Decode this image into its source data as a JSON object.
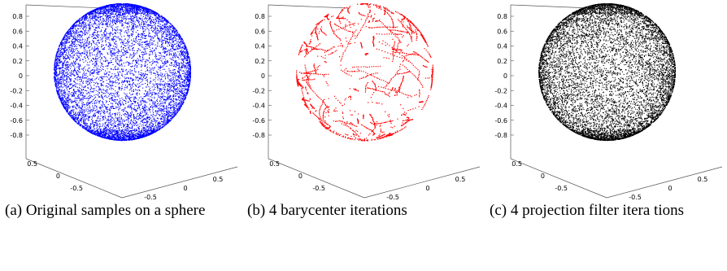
{
  "chart_data": [
    {
      "type": "scatter",
      "projection": "3d",
      "color": "#0000ff",
      "point_count": 9000,
      "distribution": "uniform samples on unit sphere",
      "yticks": [
        "0.8",
        "0.6",
        "0.4",
        "0.2",
        "0",
        "-0.2",
        "-0.4",
        "-0.6",
        "-0.8"
      ],
      "xticks": [
        "0.5",
        "0",
        "-0.5"
      ],
      "zticks": [
        "-0.5",
        "0",
        "0.5"
      ],
      "caption": {
        "label": "(a)",
        "text": "Original samples on a sphere"
      }
    },
    {
      "type": "scatter",
      "projection": "3d",
      "color": "#ff0000",
      "point_count": 2600,
      "distribution": "clustered filaments after barycenter iterations",
      "yticks": [
        "0.8",
        "0.6",
        "0.4",
        "0.2",
        "0",
        "-0.2",
        "-0.4",
        "-0.6",
        "-0.8"
      ],
      "xticks": [
        "0.5",
        "0",
        "-0.5"
      ],
      "zticks": [
        "-0.5",
        "0",
        "0.5"
      ],
      "caption": {
        "label": "(b)",
        "text": "4 barycenter iterations"
      }
    },
    {
      "type": "scatter",
      "projection": "3d",
      "color": "#000000",
      "point_count": 9000,
      "distribution": "samples on sphere after projection filter",
      "yticks": [
        "0.8",
        "0.6",
        "0.4",
        "0.2",
        "0",
        "-0.2",
        "-0.4",
        "-0.6",
        "-0.8"
      ],
      "xticks": [
        "0.5",
        "0",
        "-0.5"
      ],
      "zticks": [
        "-0.5",
        "0",
        "0.5"
      ],
      "caption": {
        "label": "(c)",
        "text": "4 projection filter itera tions"
      }
    }
  ]
}
